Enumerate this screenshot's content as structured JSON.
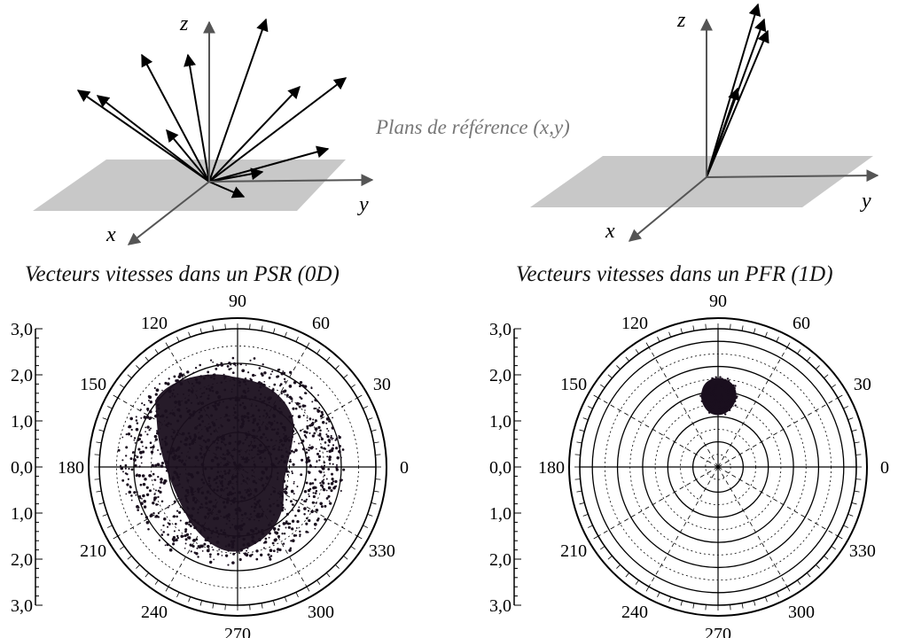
{
  "center_label": "Plans de référence (x,y)",
  "left_diagram": {
    "caption": "Vecteurs vitesses dans un PSR (0D)",
    "axis_x": "x",
    "axis_y": "y",
    "axis_z": "z"
  },
  "right_diagram": {
    "caption": "Vecteurs vitesses dans un PFR (1D)",
    "axis_x": "x",
    "axis_y": "y",
    "axis_z": "z"
  },
  "polar_plots": {
    "radial_ticks": [
      "3,0",
      "2,0",
      "1,0",
      "0,0",
      "1,0",
      "2,0",
      "3,0"
    ],
    "angle_labels": [
      "90",
      "60",
      "30",
      "0",
      "330",
      "300",
      "270",
      "240",
      "210",
      "180",
      "150",
      "120"
    ]
  },
  "colors": {
    "plane": "#c8c8c8",
    "arrow": "#000000",
    "dots": "#1a0f1e",
    "caption_gray": "#777777"
  }
}
